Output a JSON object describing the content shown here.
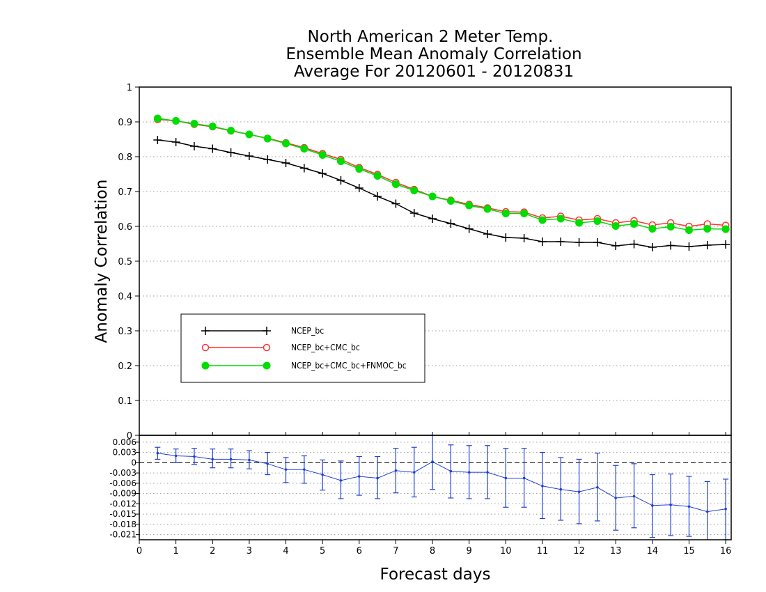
{
  "chart_data": {
    "type": "line",
    "title": [
      "North American 2 Meter Temp.",
      "Ensemble Mean Anomaly Correlation",
      "Average For 20120601 - 20120831"
    ],
    "xlabel": "Forecast days",
    "ylabel": "Anomaly Correlation",
    "xlim": [
      0,
      16.15
    ],
    "ylim": [
      0,
      1
    ],
    "x_ticks": [
      "0",
      "1",
      "2",
      "3",
      "4",
      "5",
      "6",
      "7",
      "8",
      "9",
      "10",
      "11",
      "12",
      "13",
      "14",
      "15",
      "16"
    ],
    "y_ticks": [
      "0",
      "0.1",
      "0.2",
      "0.3",
      "0.4",
      "0.5",
      "0.6",
      "0.7",
      "0.8",
      "0.9",
      "1"
    ],
    "grid": true,
    "legend_position": "lower-left",
    "x": [
      0.5,
      1,
      1.5,
      2,
      2.5,
      3,
      3.5,
      4,
      4.5,
      5,
      5.5,
      6,
      6.5,
      7,
      7.5,
      8,
      8.5,
      9,
      9.5,
      10,
      10.5,
      11,
      11.5,
      12,
      12.5,
      13,
      13.5,
      14,
      14.5,
      15,
      15.5,
      16
    ],
    "series": [
      {
        "name": "NCEP_bc",
        "color": "#000000",
        "marker": "plus",
        "values": [
          0.848,
          0.842,
          0.83,
          0.823,
          0.812,
          0.802,
          0.792,
          0.782,
          0.767,
          0.752,
          0.732,
          0.71,
          0.686,
          0.665,
          0.638,
          0.622,
          0.608,
          0.593,
          0.578,
          0.568,
          0.566,
          0.556,
          0.556,
          0.554,
          0.554,
          0.544,
          0.549,
          0.54,
          0.545,
          0.542,
          0.546,
          0.548
        ]
      },
      {
        "name": "NCEP_bc+CMC_bc",
        "color": "#ff3333",
        "marker": "open-circle",
        "values": [
          0.907,
          0.903,
          0.893,
          0.886,
          0.874,
          0.864,
          0.853,
          0.84,
          0.826,
          0.809,
          0.792,
          0.769,
          0.749,
          0.726,
          0.706,
          0.686,
          0.675,
          0.663,
          0.653,
          0.642,
          0.641,
          0.624,
          0.629,
          0.618,
          0.622,
          0.61,
          0.616,
          0.604,
          0.61,
          0.6,
          0.607,
          0.603
        ]
      },
      {
        "name": "NCEP_bc+CMC_bc+FNMOC_bc",
        "color": "#00dd00",
        "marker": "filled-circle",
        "values": [
          0.91,
          0.903,
          0.895,
          0.887,
          0.875,
          0.864,
          0.852,
          0.838,
          0.823,
          0.805,
          0.787,
          0.765,
          0.745,
          0.721,
          0.703,
          0.686,
          0.673,
          0.66,
          0.65,
          0.637,
          0.637,
          0.618,
          0.622,
          0.61,
          0.615,
          0.601,
          0.607,
          0.593,
          0.599,
          0.589,
          0.593,
          0.592
        ]
      }
    ],
    "diff_panel": {
      "ylim": [
        -0.0225,
        0.008
      ],
      "y_ticks": [
        "0.006",
        "0.003",
        "0",
        "-0.003",
        "-0.006",
        "-0.009",
        "-0.012",
        "-0.015",
        "-0.018",
        "-0.021"
      ],
      "color": "#1f3fd6",
      "zero_line": true,
      "values": [
        0.0028,
        0.002,
        0.0018,
        0.001,
        0.001,
        0.0008,
        -0.0003,
        -0.002,
        -0.002,
        -0.0035,
        -0.0052,
        -0.004,
        -0.0045,
        -0.0023,
        -0.0028,
        0.0003,
        -0.0025,
        -0.0028,
        -0.0028,
        -0.0045,
        -0.0045,
        -0.0068,
        -0.0078,
        -0.0085,
        -0.0072,
        -0.0103,
        -0.0098,
        -0.0125,
        -0.0123,
        -0.0128,
        -0.0143,
        -0.0135
      ],
      "err_high": [
        0.0045,
        0.004,
        0.0042,
        0.004,
        0.004,
        0.0035,
        0.003,
        0.0015,
        0.002,
        0.0008,
        0.0005,
        0.0018,
        0.0018,
        0.0042,
        0.0045,
        0.008,
        0.0052,
        0.005,
        0.005,
        0.0042,
        0.0042,
        0.003,
        0.0015,
        0.001,
        0.0028,
        -0.0008,
        -0.0003,
        -0.0035,
        -0.0033,
        -0.004,
        -0.0055,
        -0.0048
      ],
      "err_low": [
        0.001,
        0.0,
        -0.0005,
        -0.0015,
        -0.0015,
        -0.0018,
        -0.0035,
        -0.0058,
        -0.006,
        -0.008,
        -0.0105,
        -0.0095,
        -0.0105,
        -0.0088,
        -0.01,
        -0.0078,
        -0.0103,
        -0.0105,
        -0.0105,
        -0.013,
        -0.013,
        -0.0163,
        -0.0168,
        -0.0178,
        -0.017,
        -0.0197,
        -0.019,
        -0.0218,
        -0.0213,
        -0.0215,
        -0.023,
        -0.0225
      ]
    }
  }
}
